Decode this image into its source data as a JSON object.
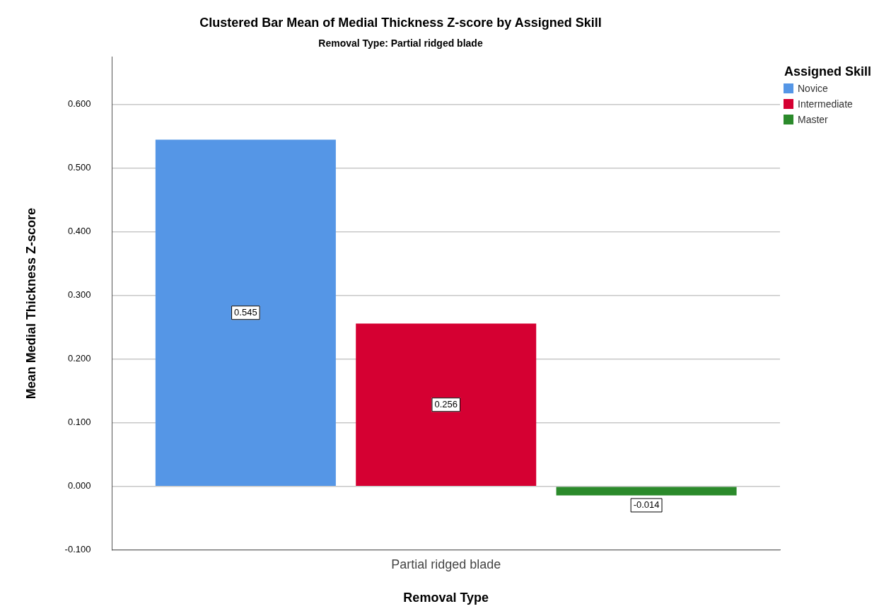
{
  "chart_data": {
    "type": "bar",
    "title": "Clustered Bar Mean of Medial Thickness Z-score by Assigned Skill",
    "subtitle": "Removal Type: Partial ridged blade",
    "xlabel": "Removal Type",
    "ylabel": "Mean Medial Thickness Z-score",
    "legend_title": "Assigned Skill",
    "categories": [
      "Partial ridged blade"
    ],
    "series": [
      {
        "name": "Novice",
        "color": "#5596e6",
        "values": [
          0.545
        ]
      },
      {
        "name": "Intermediate",
        "color": "#d50032",
        "values": [
          0.256
        ]
      },
      {
        "name": "Master",
        "color": "#2b8a2b",
        "values": [
          -0.014
        ]
      }
    ],
    "ylim": [
      -0.1,
      0.675
    ],
    "yticks": [
      {
        "value": -0.1,
        "label": "-0.100"
      },
      {
        "value": 0,
        "label": "0.000"
      },
      {
        "value": 0.1,
        "label": "0.100"
      },
      {
        "value": 0.2,
        "label": "0.200"
      },
      {
        "value": 0.3,
        "label": "0.300"
      },
      {
        "value": 0.4,
        "label": "0.400"
      },
      {
        "value": 0.5,
        "label": "0.500"
      },
      {
        "value": 0.6,
        "label": "0.600"
      }
    ],
    "grid": "y",
    "legend": "top right",
    "data_labels": true
  }
}
